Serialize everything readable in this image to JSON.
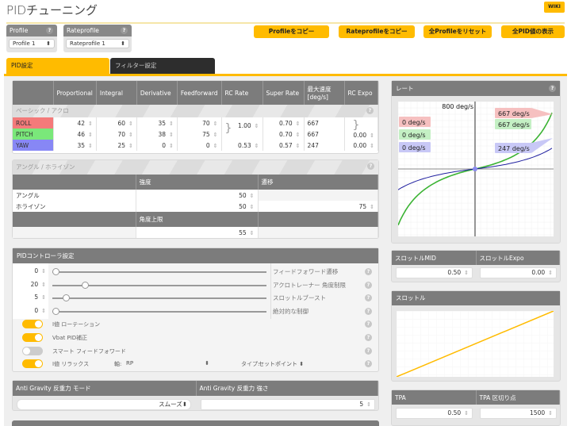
{
  "header": {
    "title": "PIDチューニング",
    "wiki": "WIKI"
  },
  "profile": {
    "label": "Profile",
    "value": "Profile 1"
  },
  "rateprofile": {
    "label": "Rateprofile",
    "value": "Rateprofile 1"
  },
  "buttons": [
    "Profileをコピー",
    "Rateprofileをコピー",
    "全Profileをリセット",
    "全PID値の表示"
  ],
  "tabs": [
    {
      "label": "PID設定",
      "active": true
    },
    {
      "label": "フィルター設定",
      "active": false
    }
  ],
  "pid": {
    "headers": [
      "",
      "Proportional",
      "Integral",
      "Derivative",
      "Feedforward",
      "RC Rate",
      "Super Rate",
      "最大速度 [deg/s]",
      "RC Expo"
    ],
    "section": "ベーシック / アクロ",
    "rows": [
      {
        "axis": "ROLL",
        "color": "#f47a7a",
        "p": "42",
        "i": "60",
        "d": "35",
        "ff": "70",
        "rc_rate": "1.00",
        "super_rate": "0.70",
        "max": "667",
        "expo": "0.00"
      },
      {
        "axis": "PITCH",
        "color": "#7ae87a",
        "p": "46",
        "i": "70",
        "d": "38",
        "ff": "75",
        "rc_rate": "",
        "super_rate": "0.70",
        "max": "667",
        "expo": ""
      },
      {
        "axis": "YAW",
        "color": "#8787f5",
        "p": "35",
        "i": "25",
        "d": "0",
        "ff": "0",
        "rc_rate": "0.53",
        "super_rate": "0.57",
        "max": "247",
        "expo": "0.00"
      }
    ]
  },
  "angle": {
    "title": "アングル / ホライゾン",
    "col_strength": "強度",
    "col_transition": "遷移",
    "angle_label": "アングル",
    "angle_strength": "50",
    "horizon_label": "ホライゾン",
    "horizon_strength": "50",
    "horizon_transition": "75",
    "limit_label": "角度上限",
    "limit_value": "55"
  },
  "controller": {
    "title": "PIDコントローラ設定",
    "sliders": [
      {
        "value": "0",
        "label": "フィードフォワード遷移",
        "position": 0
      },
      {
        "value": "20",
        "label": "アクロトレーナー 角度制限",
        "position": 0.14
      },
      {
        "value": "5",
        "label": "スロットルブースト",
        "position": 0.05
      },
      {
        "value": "0",
        "label": "絶対的な制御",
        "position": 0
      }
    ],
    "toggles": [
      {
        "label": "I値 ローテーション",
        "on": true
      },
      {
        "label": "Vbat PID補正",
        "on": true
      },
      {
        "label": "スマート フィードフォワード",
        "on": false
      },
      {
        "label": "I値 リラックス",
        "on": true
      }
    ],
    "relax_axis_label": "軸:",
    "relax_axis": "RP",
    "relax_type_label": "タイプ:",
    "relax_type": "セットポイント"
  },
  "antigravity": {
    "mode_label": "Anti Gravity 反重力 モード",
    "mode": "スムーズ",
    "gain_label": "Anti Gravity 反重力 強さ",
    "gain": "5"
  },
  "rate_panel": {
    "title": "レート",
    "max_label": "800 deg/s",
    "left_labels": [
      "0 deg/s",
      "0 deg/s",
      "0 deg/s"
    ],
    "right_labels": [
      "667 deg/s",
      "667 deg/s",
      "247 deg/s"
    ],
    "colors": {
      "roll": "#f4a0a0",
      "pitch": "#33b833",
      "yaw": "#2020a0"
    }
  },
  "throttle": {
    "mid_label": "スロットルMID",
    "mid": "0.50",
    "expo_label": "スロットルExpo",
    "expo": "0.00",
    "title": "スロットル"
  },
  "tpa": {
    "tpa_label": "TPA",
    "tpa": "0.50",
    "breakpoint_label": "TPA 区切り点",
    "breakpoint": "1500"
  }
}
